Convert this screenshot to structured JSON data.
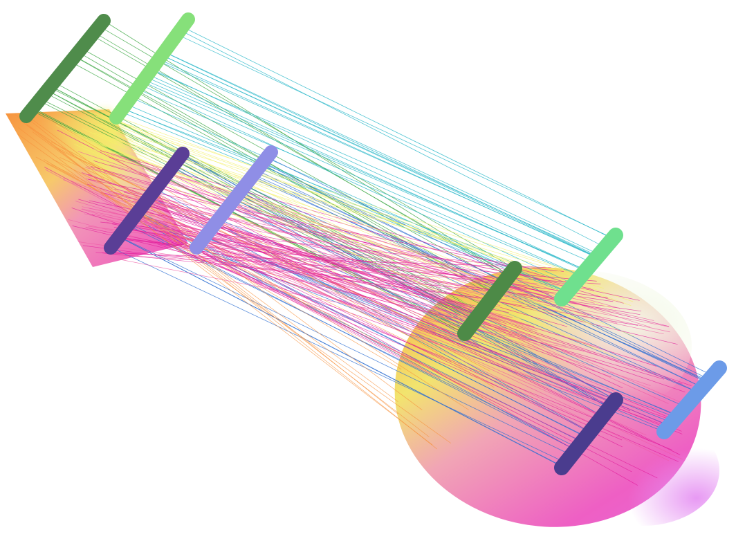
{
  "scene": {
    "background": "#ffffff",
    "source_shape": "square",
    "target_shape": "ellipse",
    "legs_per_shape": 4,
    "correspondence_line_count": 220,
    "colors": {
      "orange": "#f7923d",
      "yellow": "#f3f06a",
      "magenta": "#f04fb8",
      "pink": "#ef5aa6",
      "violet": "#d77bf0",
      "dark_green": "#3c8a4e",
      "light_green": "#4fe08a",
      "navy": "#2f3a86",
      "blue": "#3f8ee6",
      "line_cyan": "#27b6c8",
      "line_green": "#3da845",
      "line_blue": "#2e6fd2",
      "line_magenta": "#e0189a"
    }
  }
}
